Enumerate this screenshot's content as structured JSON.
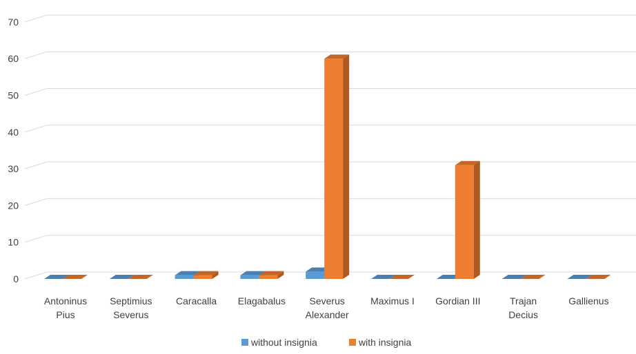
{
  "chart_data": {
    "type": "bar",
    "style": "3d-clustered-column",
    "categories": [
      [
        "Antoninus",
        "Pius"
      ],
      [
        "Septimius",
        "Severus"
      ],
      [
        "Caracalla"
      ],
      [
        "Elagabalus"
      ],
      [
        "Severus",
        "Alexander"
      ],
      [
        "Maximus I"
      ],
      [
        "Gordian III"
      ],
      [
        "Trajan",
        "Decius"
      ],
      [
        "Gallienus"
      ]
    ],
    "series": [
      {
        "name": "without insignia",
        "color": "#5B9BD5",
        "values": [
          0,
          0,
          1,
          1,
          2,
          0,
          0,
          0,
          0
        ]
      },
      {
        "name": "with insignia",
        "color": "#ED7D31",
        "values": [
          0,
          0,
          1,
          1,
          60,
          0,
          31,
          0,
          0
        ]
      }
    ],
    "y_ticks": [
      "0",
      "10",
      "20",
      "30",
      "40",
      "50",
      "60",
      "70"
    ],
    "ylim": [
      0,
      70
    ],
    "grid": true,
    "legend": "bottom-center",
    "title": "",
    "xlabel": "",
    "ylabel": ""
  }
}
